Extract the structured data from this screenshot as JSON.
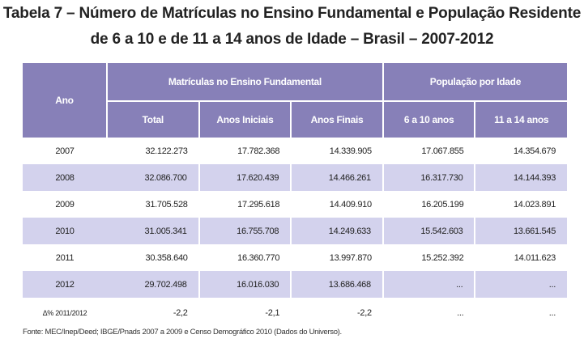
{
  "title": {
    "line1": "Tabela 7 – Número de Matrículas no Ensino Fundamental e População Residente",
    "line2": "de 6 a 10 e de 11 a 14 anos de Idade – Brasil – 2007-2012"
  },
  "table": {
    "header": {
      "ano": "Ano",
      "matriculas_group": "Matrículas no Ensino Fundamental",
      "populacao_group": "População por Idade",
      "columns": [
        "Total",
        "Anos Iniciais",
        "Anos Finais",
        "6 a 10 anos",
        "11 a 14 anos"
      ]
    },
    "rows": [
      {
        "ano": "2007",
        "values": [
          "32.122.273",
          "17.782.368",
          "14.339.905",
          "17.067.855",
          "14.354.679"
        ]
      },
      {
        "ano": "2008",
        "values": [
          "32.086.700",
          "17.620.439",
          "14.466.261",
          "16.317.730",
          "14.144.393"
        ]
      },
      {
        "ano": "2009",
        "values": [
          "31.705.528",
          "17.295.618",
          "14.409.910",
          "16.205.199",
          "14.023.891"
        ]
      },
      {
        "ano": "2010",
        "values": [
          "31.005.341",
          "16.755.708",
          "14.249.633",
          "15.542.603",
          "13.661.545"
        ]
      },
      {
        "ano": "2011",
        "values": [
          "30.358.640",
          "16.360.770",
          "13.997.870",
          "15.252.392",
          "14.011.623"
        ]
      },
      {
        "ano": "2012",
        "values": [
          "29.702.498",
          "16.016.030",
          "13.686.468",
          "...",
          "..."
        ]
      }
    ],
    "delta": {
      "ano": "Δ% 2011/2012",
      "values": [
        "-2,2",
        "-2,1",
        "-2,2",
        "...",
        "..."
      ]
    }
  },
  "footer": "Fonte: MEC/Inep/Deed; IBGE/Pnads 2007 a 2009 e Censo Demográfico 2010 (Dados do Universo).",
  "colors": {
    "header_bg": "#8780b8",
    "row_shade": "#d3d2ed",
    "text": "#222222"
  }
}
